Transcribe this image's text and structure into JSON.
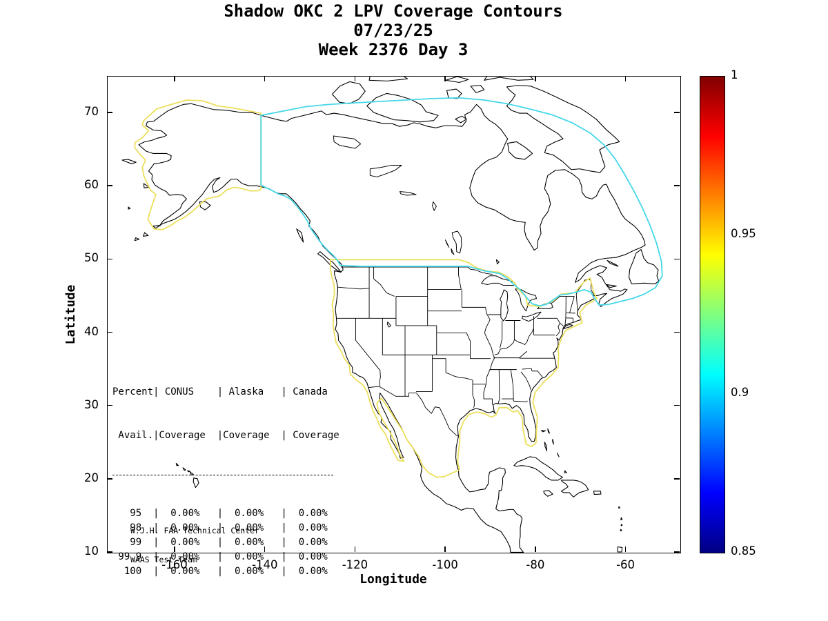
{
  "title": {
    "line1": "Shadow OKC 2 LPV Coverage Contours",
    "line2": "07/23/25",
    "line3": "Week 2376 Day 3"
  },
  "axes": {
    "x_label": "Longitude",
    "y_label": "Latitude",
    "x_ticks": [
      -160,
      -140,
      -120,
      -100,
      -80,
      -60
    ],
    "y_ticks": [
      70,
      60,
      50,
      40,
      30,
      20,
      10
    ],
    "x_range": [
      -175,
      -48
    ],
    "y_range": [
      10,
      75
    ]
  },
  "colorbar": {
    "min": 0.85,
    "max": 1,
    "ticks": [
      "1",
      "0.95",
      "0.9",
      "0.85"
    ],
    "tick_values": [
      1,
      0.95,
      0.9,
      0.85
    ],
    "colormap": "jet"
  },
  "coverage_table": {
    "header_line1": "Percent| CONUS    | Alaska   | Canada",
    "header_line2": " Avail.|Coverage  |Coverage  | Coverage",
    "rows": [
      [
        "95",
        "0.00%",
        "0.00%",
        "0.00%"
      ],
      [
        "98",
        "0.00%",
        "0.00%",
        "0.00%"
      ],
      [
        "99",
        "0.00%",
        "0.00%",
        "0.00%"
      ],
      [
        "99.9",
        "0.00%",
        "0.00%",
        "0.00%"
      ],
      [
        "100",
        "0.00%",
        "0.00%",
        "0.00%"
      ]
    ]
  },
  "credit": {
    "line1": "W.J.H. FAA Technical Center",
    "line2": "WAAS Test Team"
  },
  "colors": {
    "conus_contour": "#ecdf5b",
    "canada_contour": "#44d7e8",
    "coastline": "#000000"
  },
  "chart_data": [
    {
      "type": "heatmap",
      "title": "Shadow OKC 2 LPV Coverage Contours",
      "subtitle": [
        "07/23/25",
        "Week 2376 Day 3"
      ],
      "xlabel": "Longitude",
      "ylabel": "Latitude",
      "xlim": [
        -175,
        -48
      ],
      "ylim": [
        10,
        75
      ],
      "x_ticks": [
        -160,
        -140,
        -120,
        -100,
        -80,
        -60
      ],
      "y_ticks": [
        70,
        60,
        50,
        40,
        30,
        20,
        10
      ],
      "grid": false,
      "colorbar": {
        "min": 0.85,
        "max": 1,
        "ticks": [
          1,
          0.95,
          0.9,
          0.85
        ],
        "colormap": "jet"
      },
      "contours": [
        {
          "name": "conus-coverage-boundary",
          "color": "#ecdf5b"
        },
        {
          "name": "alaska-coverage-boundary",
          "color": "#ecdf5b"
        },
        {
          "name": "canada-coverage-boundary",
          "color": "#44d7e8"
        }
      ],
      "notes": "Base map of North America (coastlines, US state borders) with LPV coverage region boundary contours; no filled contour levels visible"
    },
    {
      "type": "table",
      "columns": [
        "Percent Avail.",
        "CONUS Coverage",
        "Alaska Coverage",
        "Canada Coverage"
      ],
      "rows": [
        [
          "95",
          "0.00%",
          "0.00%",
          "0.00%"
        ],
        [
          "98",
          "0.00%",
          "0.00%",
          "0.00%"
        ],
        [
          "99",
          "0.00%",
          "0.00%",
          "0.00%"
        ],
        [
          "99.9",
          "0.00%",
          "0.00%",
          "0.00%"
        ],
        [
          "100",
          "0.00%",
          "0.00%",
          "0.00%"
        ]
      ]
    }
  ]
}
